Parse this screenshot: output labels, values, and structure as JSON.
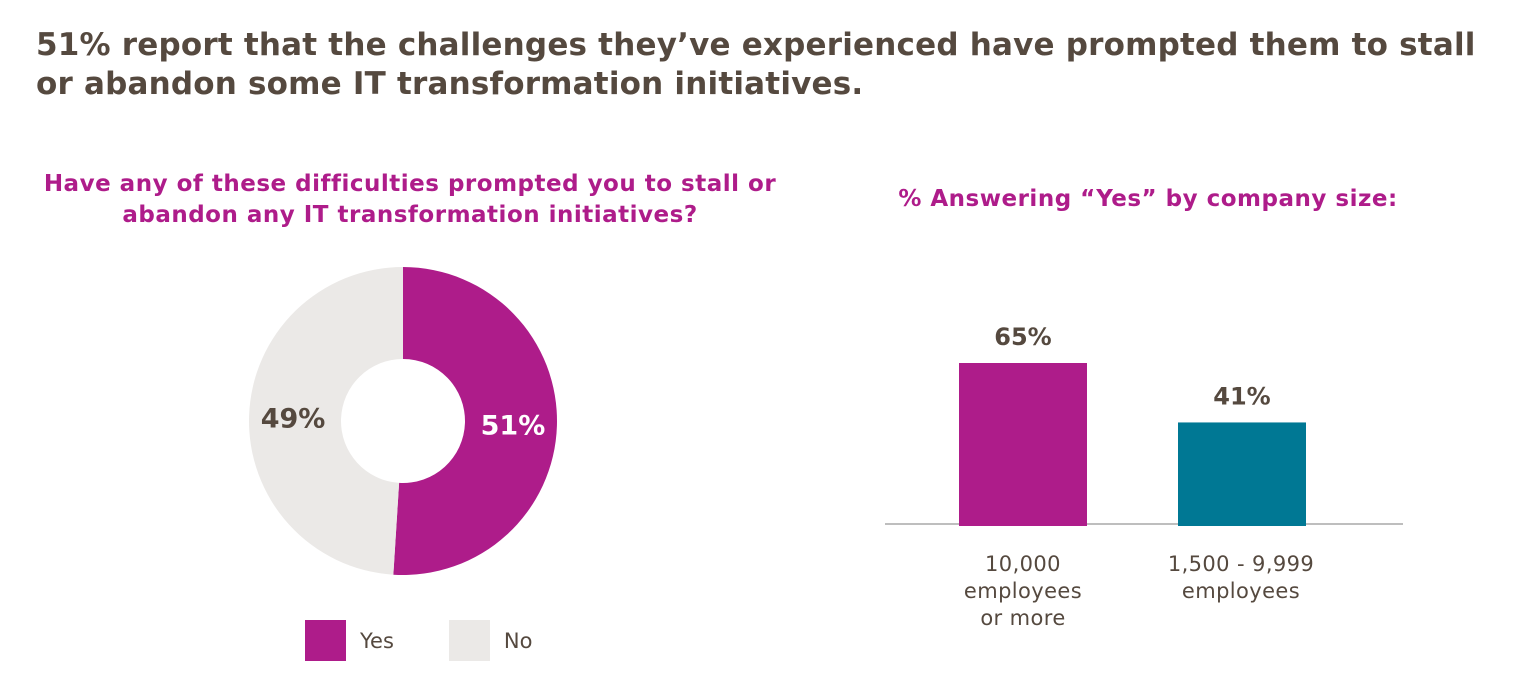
{
  "headline": "51% report that the challenges they’ve experienced have prompted them to stall or abandon some IT transformation initiatives.",
  "colors": {
    "yes": "#ae1c8a",
    "no": "#ebe9e7",
    "teal": "#007894",
    "text": "#55493f",
    "axis": "#a8a8a8"
  },
  "chart_data": [
    {
      "type": "pie",
      "donut": true,
      "title": "Have any of these difficulties prompted you to stall or abandon any IT transformation initiatives?",
      "slices": [
        {
          "label": "Yes",
          "value": 51,
          "display": "51%"
        },
        {
          "label": "No",
          "value": 49,
          "display": "49%"
        }
      ],
      "legend": "bottom"
    },
    {
      "type": "bar",
      "title": "% Answering “Yes” by company size:",
      "categories": [
        "10,000\nemployees\nor more",
        "1,500 - 9,999\nemployees"
      ],
      "values": [
        65,
        41
      ],
      "value_labels": [
        "65%",
        "41%"
      ],
      "ylim": [
        0,
        65
      ],
      "grid": false
    }
  ]
}
